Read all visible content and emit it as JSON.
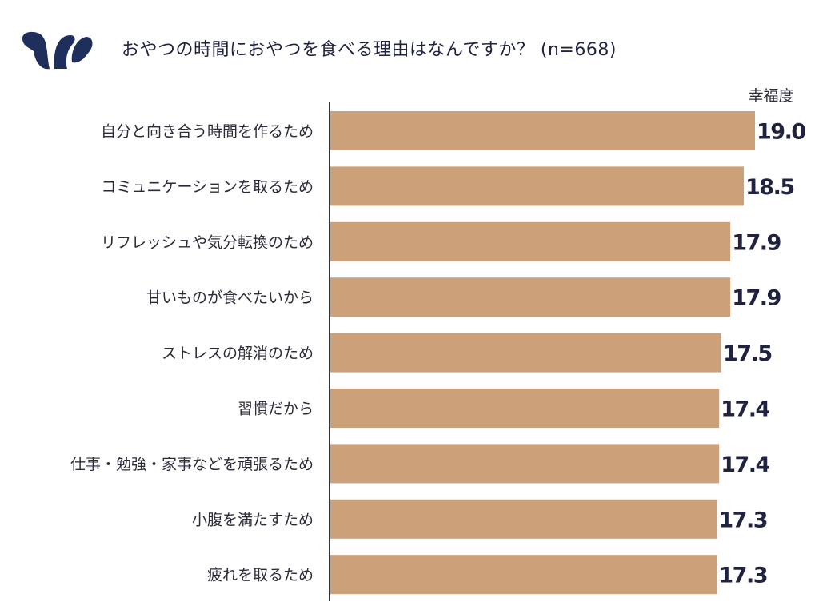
{
  "header": {
    "title": "おやつの時間におやつを食べる理由はなんですか？ (n=668)",
    "logo_icon": "brand-logo-icon",
    "logo_color": "#1f2f5c"
  },
  "chart_data": {
    "type": "bar",
    "orientation": "horizontal",
    "title": "おやつの時間におやつを食べる理由はなんですか？ (n=668)",
    "metric_label": "幸福度",
    "categories": [
      "自分と向き合う時間を作るため",
      "コミュニケーションを取るため",
      "リフレッシュや気分転換のため",
      "甘いものが食べたいから",
      "ストレスの解消のため",
      "習慣だから",
      "仕事・勉強・家事などを頑張るため",
      "小腹を満たすため",
      "疲れを取るため"
    ],
    "values": [
      19.0,
      18.5,
      17.9,
      17.9,
      17.5,
      17.4,
      17.4,
      17.3,
      17.3
    ],
    "value_labels": [
      "19.0",
      "18.5",
      "17.9",
      "17.9",
      "17.5",
      "17.4",
      "17.4",
      "17.3",
      "17.3"
    ],
    "bar_color": "#cca078",
    "axis_color": "#333333",
    "grid": false,
    "legend": "none"
  }
}
